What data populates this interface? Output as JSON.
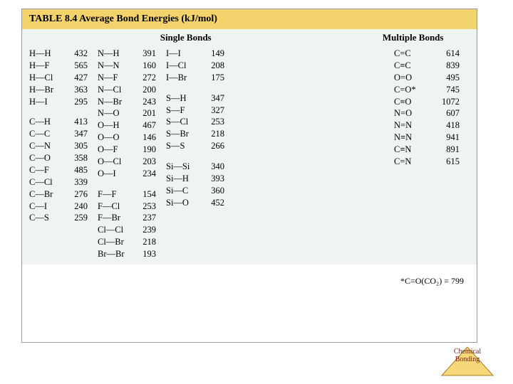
{
  "title": "TABLE 8.4   Average Bond Energies (kJ/mol)",
  "headers": {
    "single": "Single Bonds",
    "multiple": "Multiple Bonds"
  },
  "col1a": [
    {
      "b": "H—H",
      "v": "432"
    },
    {
      "b": "H—F",
      "v": "565"
    },
    {
      "b": "H—Cl",
      "v": "427"
    },
    {
      "b": "H—Br",
      "v": "363"
    },
    {
      "b": "H—I",
      "v": "295"
    }
  ],
  "col1b": [
    {
      "b": "C—H",
      "v": "413"
    },
    {
      "b": "C—C",
      "v": "347"
    },
    {
      "b": "C—N",
      "v": "305"
    },
    {
      "b": "C—O",
      "v": "358"
    },
    {
      "b": "C—F",
      "v": "485"
    },
    {
      "b": "C—Cl",
      "v": "339"
    },
    {
      "b": "C—Br",
      "v": "276"
    },
    {
      "b": "C—I",
      "v": "240"
    },
    {
      "b": "C—S",
      "v": "259"
    }
  ],
  "col2a": [
    {
      "b": "N—H",
      "v": "391"
    },
    {
      "b": "N—N",
      "v": "160"
    },
    {
      "b": "N—F",
      "v": "272"
    },
    {
      "b": "N—Cl",
      "v": "200"
    },
    {
      "b": "N—Br",
      "v": "243"
    },
    {
      "b": "N—O",
      "v": "201"
    },
    {
      "b": "O—H",
      "v": "467"
    },
    {
      "b": "O—O",
      "v": "146"
    },
    {
      "b": "O—F",
      "v": "190"
    },
    {
      "b": "O—Cl",
      "v": "203"
    },
    {
      "b": "O—I",
      "v": "234"
    }
  ],
  "col2b": [
    {
      "b": "F—F",
      "v": "154"
    },
    {
      "b": "F—Cl",
      "v": "253"
    },
    {
      "b": "F—Br",
      "v": "237"
    },
    {
      "b": "Cl—Cl",
      "v": "239"
    },
    {
      "b": "Cl—Br",
      "v": "218"
    },
    {
      "b": "Br—Br",
      "v": "193"
    }
  ],
  "col3a": [
    {
      "b": "I—I",
      "v": "149"
    },
    {
      "b": "I—Cl",
      "v": "208"
    },
    {
      "b": "I—Br",
      "v": "175"
    }
  ],
  "col3b": [
    {
      "b": "S—H",
      "v": "347"
    },
    {
      "b": "S—F",
      "v": "327"
    },
    {
      "b": "S—Cl",
      "v": "253"
    },
    {
      "b": "S—Br",
      "v": "218"
    },
    {
      "b": "S—S",
      "v": "266"
    }
  ],
  "col3c": [
    {
      "b": "Si—Si",
      "v": "340"
    },
    {
      "b": "Si—H",
      "v": "393"
    },
    {
      "b": "Si—C",
      "v": "360"
    },
    {
      "b": "Si—O",
      "v": "452"
    }
  ],
  "col4": [
    {
      "b": "C=C",
      "v": "614"
    },
    {
      "b": "C≡C",
      "v": "839"
    },
    {
      "b": "O=O",
      "v": "495"
    },
    {
      "b": "C=O*",
      "v": "745"
    },
    {
      "b": "C≡O",
      "v": "1072"
    },
    {
      "b": "N=O",
      "v": "607"
    },
    {
      "b": "N=N",
      "v": "418"
    },
    {
      "b": "N≡N",
      "v": "941"
    },
    {
      "b": "C≡N",
      "v": "891"
    },
    {
      "b": "C=N",
      "v": "615"
    }
  ],
  "footnote": "*C=O(CO₂) = 799",
  "badge": {
    "line1": "Chemical",
    "line2": "Bonding"
  },
  "colors": {
    "title_bg": "#f3d36b",
    "panel_bg": "#f0f4f0",
    "badge_fill": "#f6d77a",
    "badge_stroke": "#a87f1e",
    "badge_text": "#7a1a1a"
  }
}
